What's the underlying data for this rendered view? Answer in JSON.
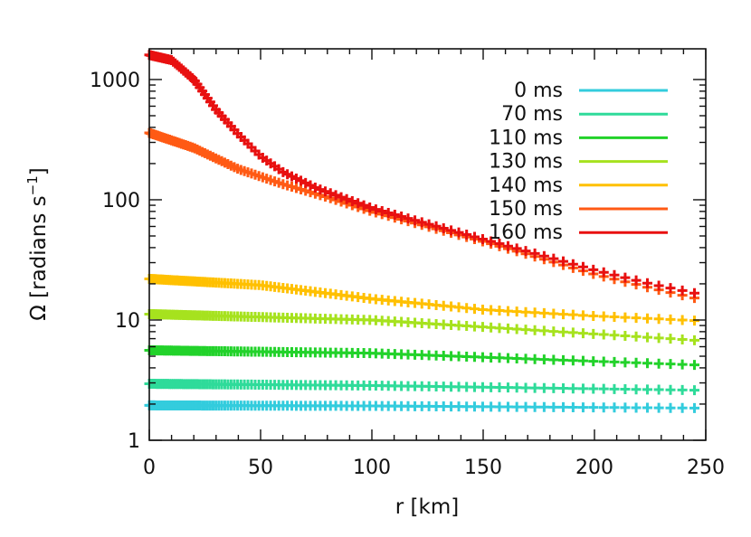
{
  "chart_data": {
    "type": "scatter",
    "marker": "plus",
    "xlabel": "r [km]",
    "ylabel_main": "Ω [radians s",
    "ylabel_sup": "−1",
    "ylabel_end": "]",
    "xlim": [
      0,
      250
    ],
    "ylim": [
      1,
      1800
    ],
    "yscale": "log",
    "x_ticks": [
      0,
      50,
      100,
      150,
      200,
      250
    ],
    "x_tick_labels": [
      "0",
      "50",
      "100",
      "150",
      "200",
      "250"
    ],
    "y_ticks": [
      1,
      10,
      100,
      1000
    ],
    "y_tick_labels": [
      "1",
      "10",
      "100",
      "1000"
    ],
    "legend_position": "top-right",
    "series": [
      {
        "name": "0 ms",
        "color": "#33ccdd",
        "profile": [
          [
            0,
            1.95
          ],
          [
            100,
            1.93
          ],
          [
            250,
            1.85
          ]
        ]
      },
      {
        "name": "70 ms",
        "color": "#2fdb9a",
        "profile": [
          [
            0,
            2.95
          ],
          [
            100,
            2.85
          ],
          [
            250,
            2.6
          ]
        ]
      },
      {
        "name": "110 ms",
        "color": "#22d22a",
        "profile": [
          [
            0,
            5.6
          ],
          [
            100,
            5.3
          ],
          [
            250,
            4.2
          ]
        ]
      },
      {
        "name": "130 ms",
        "color": "#a6e21e",
        "profile": [
          [
            0,
            11.2
          ],
          [
            100,
            10.0
          ],
          [
            250,
            6.7
          ]
        ]
      },
      {
        "name": "140 ms",
        "color": "#ffc000",
        "profile": [
          [
            0,
            22.0
          ],
          [
            50,
            19.5
          ],
          [
            100,
            15.0
          ],
          [
            150,
            12.2
          ],
          [
            200,
            10.8
          ],
          [
            250,
            9.8
          ]
        ]
      },
      {
        "name": "150 ms",
        "color": "#ff5a14",
        "profile": [
          [
            0,
            360
          ],
          [
            20,
            270
          ],
          [
            40,
            180
          ],
          [
            60,
            135
          ],
          [
            80,
            105
          ],
          [
            100,
            80
          ],
          [
            125,
            60
          ],
          [
            150,
            45
          ],
          [
            175,
            33
          ],
          [
            200,
            24
          ],
          [
            225,
            18.5
          ],
          [
            250,
            14.5
          ]
        ]
      },
      {
        "name": "160 ms",
        "color": "#e81010",
        "profile": [
          [
            0,
            1600
          ],
          [
            10,
            1450
          ],
          [
            20,
            1000
          ],
          [
            30,
            560
          ],
          [
            40,
            350
          ],
          [
            50,
            230
          ],
          [
            60,
            170
          ],
          [
            75,
            125
          ],
          [
            100,
            85
          ],
          [
            125,
            63
          ],
          [
            150,
            47
          ],
          [
            175,
            35
          ],
          [
            200,
            26
          ],
          [
            225,
            20
          ],
          [
            250,
            16
          ]
        ]
      }
    ]
  }
}
